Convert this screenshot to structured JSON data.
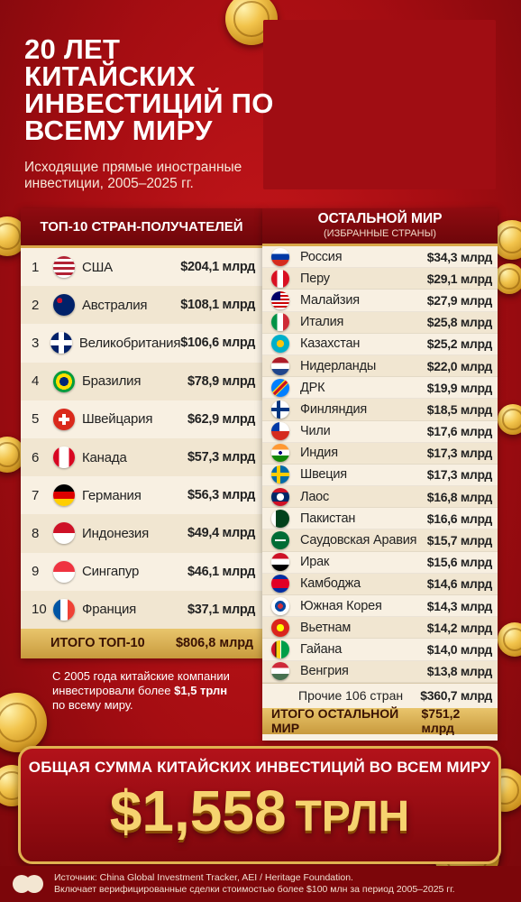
{
  "header": {
    "title": "20 ЛЕТ КИТАЙСКИХ ИНВЕСТИЦИЙ ПО ВСЕМУ МИРУ",
    "subtitle": "Исходящие прямые иностранные инвестиции, 2005–2025 гг."
  },
  "top10": {
    "heading": "ТОП-10 СТРАН-ПОЛУЧАТЕЛЕЙ",
    "rows": [
      {
        "rank": "1",
        "country": "США",
        "value": "$204,1 млрд",
        "flag": "flag-usa"
      },
      {
        "rank": "2",
        "country": "Австралия",
        "value": "$108,1 млрд",
        "flag": "flag-australia"
      },
      {
        "rank": "3",
        "country": "Великобритания",
        "value": "$106,6 млрд",
        "flag": "flag-uk"
      },
      {
        "rank": "4",
        "country": "Бразилия",
        "value": "$78,9 млрд",
        "flag": "flag-brazil"
      },
      {
        "rank": "5",
        "country": "Швейцария",
        "value": "$62,9 млрд",
        "flag": "flag-switzerland"
      },
      {
        "rank": "6",
        "country": "Канада",
        "value": "$57,3 млрд",
        "flag": "flag-canada"
      },
      {
        "rank": "7",
        "country": "Германия",
        "value": "$56,3 млрд",
        "flag": "flag-germany"
      },
      {
        "rank": "8",
        "country": "Индонезия",
        "value": "$49,4 млрд",
        "flag": "flag-indonesia"
      },
      {
        "rank": "9",
        "country": "Сингапур",
        "value": "$46,1 млрд",
        "flag": "flag-singapore"
      },
      {
        "rank": "10",
        "country": "Франция",
        "value": "$37,1 млрд",
        "flag": "flag-france"
      }
    ],
    "total_label": "ИТОГО ТОП-10",
    "total_value": "$806,8 млрд"
  },
  "rest": {
    "heading": "ОСТАЛЬНОЙ МИР",
    "subheading": "(ИЗБРАННЫЕ СТРАНЫ)",
    "rows": [
      {
        "country": "Россия",
        "value": "$34,3 млрд",
        "flag": "flag-russia"
      },
      {
        "country": "Перу",
        "value": "$29,1 млрд",
        "flag": "flag-peru"
      },
      {
        "country": "Малайзия",
        "value": "$27,9 млрд",
        "flag": "flag-malaysia"
      },
      {
        "country": "Италия",
        "value": "$25,8 млрд",
        "flag": "flag-italy"
      },
      {
        "country": "Казахстан",
        "value": "$25,2 млрд",
        "flag": "flag-kazakhstan"
      },
      {
        "country": "Нидерланды",
        "value": "$22,0 млрд",
        "flag": "flag-netherlands"
      },
      {
        "country": "ДРК",
        "value": "$19,9 млрд",
        "flag": "flag-drc"
      },
      {
        "country": "Финляндия",
        "value": "$18,5 млрд",
        "flag": "flag-finland"
      },
      {
        "country": "Чили",
        "value": "$17,6 млрд",
        "flag": "flag-chile"
      },
      {
        "country": "Индия",
        "value": "$17,3 млрд",
        "flag": "flag-india"
      },
      {
        "country": "Швеция",
        "value": "$17,3 млрд",
        "flag": "flag-sweden"
      },
      {
        "country": "Лаос",
        "value": "$16,8 млрд",
        "flag": "flag-laos"
      },
      {
        "country": "Пакистан",
        "value": "$16,6 млрд",
        "flag": "flag-pakistan"
      },
      {
        "country": "Саудовская Аравия",
        "value": "$15,7 млрд",
        "flag": "flag-saudi-arabia"
      },
      {
        "country": "Ирак",
        "value": "$15,6 млрд",
        "flag": "flag-iraq"
      },
      {
        "country": "Камбоджа",
        "value": "$14,6 млрд",
        "flag": "flag-cambodia"
      },
      {
        "country": "Южная Корея",
        "value": "$14,3 млрд",
        "flag": "flag-south-korea"
      },
      {
        "country": "Вьетнам",
        "value": "$14,2 млрд",
        "flag": "flag-vietnam"
      },
      {
        "country": "Гайана",
        "value": "$14,0 млрд",
        "flag": "flag-guyana"
      },
      {
        "country": "Венгрия",
        "value": "$13,8 млрд",
        "flag": "flag-hungary"
      }
    ],
    "other_label": "Прочие 106 стран",
    "other_value": "$360,7 млрд",
    "total_label": "ИТОГО ОСТАЛЬНОЙ МИР",
    "total_value": "$751,2 млрд"
  },
  "note": {
    "line1": "С 2005 года китайские компании инвестировали более",
    "highlight": "$1,5 трлн",
    "line2": "по всему миру."
  },
  "grand_total": {
    "label": "ОБЩАЯ СУММА КИТАЙСКИХ ИНВЕСТИЦИЙ ВО ВСЕМ МИРУ",
    "value": "$1,558",
    "unit": "ТРЛН"
  },
  "footer": {
    "source": "Источник: China Global Investment Tracker, AEI / Heritage Foundation.",
    "disclaimer": "Включает верифицированные сделки стоимостью более $100 млн за период 2005–2025 гг."
  },
  "colors": {
    "background": "#b0101a",
    "panel": "#f8f0e2",
    "panel_header": "#7e080d",
    "gold": "#e0b250",
    "grand_value": "#f6d36f"
  }
}
